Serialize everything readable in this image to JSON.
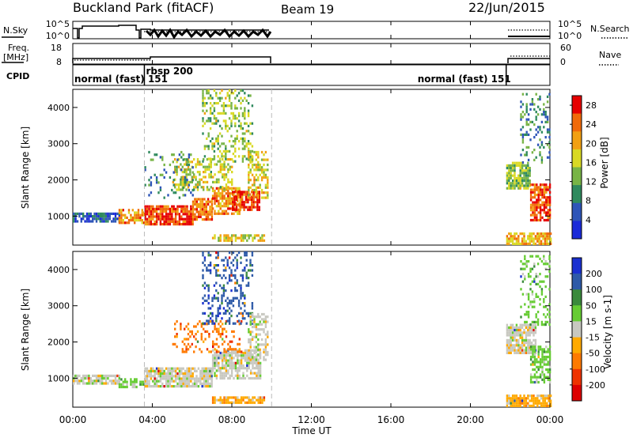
{
  "header": {
    "title": "Buckland Park (fitACF)",
    "beam": "Beam 19",
    "date": "22/Jun/2015"
  },
  "status_panels": {
    "nsky_label": "N.Sky",
    "nsearch_label": "N.Search",
    "noise_ticks": [
      "10^5",
      "10^0"
    ],
    "freq_label": "Freq.",
    "freq_unit": "[MHz]",
    "freq_ticks": [
      "18",
      "8"
    ],
    "nave_label": "Nave",
    "nave_ticks": [
      "60",
      "0"
    ],
    "cpid_label": "CPID",
    "modes": [
      {
        "name": "normal (fast) 151",
        "start_hour": 0.0,
        "end_hour": 3.6
      },
      {
        "name": "rbsp 200",
        "start_hour": 3.6,
        "end_hour": 10.0
      },
      {
        "name": "normal (fast) 151",
        "start_hour": 21.8,
        "end_hour": 24.0
      }
    ]
  },
  "time_axis": {
    "label": "Time UT",
    "ticks": [
      "00:00",
      "04:00",
      "08:00",
      "12:00",
      "16:00",
      "20:00",
      "00:00"
    ]
  },
  "chart_data": [
    {
      "type": "heatmap",
      "quantity": "power",
      "xlabel": "Time UT",
      "ylabel": "Slant Range [km]",
      "xlim_hours": [
        0,
        24
      ],
      "ylim_km": [
        200,
        4500
      ],
      "yticks": [
        1000,
        2000,
        3000,
        4000
      ],
      "colorbar": {
        "label": "Power [dB]",
        "ticks": [
          4,
          8,
          12,
          16,
          20,
          24,
          28
        ],
        "range": [
          0,
          30
        ],
        "colors": [
          "#1a2ad8",
          "#2e55b8",
          "#2f8a5e",
          "#78b446",
          "#d9d924",
          "#f2a012",
          "#f06a0a",
          "#e60000"
        ]
      },
      "echo_regions": [
        {
          "t0": 0.0,
          "t1": 2.3,
          "r0": 850,
          "r1": 1100,
          "level": 6,
          "density": 0.8
        },
        {
          "t0": 2.3,
          "t1": 3.6,
          "r0": 800,
          "r1": 1200,
          "level": 22,
          "density": 0.7
        },
        {
          "t0": 3.6,
          "t1": 6.0,
          "r0": 800,
          "r1": 1300,
          "level": 26,
          "density": 0.85
        },
        {
          "t0": 6.0,
          "t1": 7.0,
          "r0": 900,
          "r1": 1500,
          "level": 24,
          "density": 0.8
        },
        {
          "t0": 7.0,
          "t1": 8.4,
          "r0": 1100,
          "r1": 1800,
          "level": 22,
          "density": 0.7
        },
        {
          "t0": 8.0,
          "t1": 9.4,
          "r0": 1200,
          "r1": 1700,
          "level": 27,
          "density": 0.8
        },
        {
          "t0": 5.0,
          "t1": 8.0,
          "r0": 1700,
          "r1": 2600,
          "level": 16,
          "density": 0.45
        },
        {
          "t0": 6.5,
          "t1": 9.0,
          "r0": 2500,
          "r1": 4500,
          "level": 14,
          "density": 0.35
        },
        {
          "t0": 8.8,
          "t1": 9.8,
          "r0": 1500,
          "r1": 2800,
          "level": 18,
          "density": 0.5
        },
        {
          "t0": 3.6,
          "t1": 6.0,
          "r0": 1500,
          "r1": 2800,
          "level": 9,
          "density": 0.15
        },
        {
          "t0": 7.0,
          "t1": 9.6,
          "r0": 300,
          "r1": 500,
          "level": 18,
          "density": 0.7
        },
        {
          "t0": 21.8,
          "t1": 23.0,
          "r0": 1800,
          "r1": 2500,
          "level": 14,
          "density": 0.75
        },
        {
          "t0": 23.0,
          "t1": 24.0,
          "r0": 900,
          "r1": 1900,
          "level": 26,
          "density": 0.75
        },
        {
          "t0": 22.5,
          "t1": 24.0,
          "r0": 2500,
          "r1": 4400,
          "level": 9,
          "density": 0.25
        },
        {
          "t0": 21.8,
          "t1": 24.0,
          "r0": 250,
          "r1": 550,
          "level": 20,
          "density": 0.8
        }
      ]
    },
    {
      "type": "heatmap",
      "quantity": "velocity",
      "xlabel": "Time UT",
      "ylabel": "Slant Range [km]",
      "xlim_hours": [
        0,
        24
      ],
      "ylim_km": [
        200,
        4500
      ],
      "yticks": [
        1000,
        2000,
        3000,
        4000
      ],
      "colorbar": {
        "label": "Velocity [m s-1]",
        "ticks": [
          200,
          100,
          50,
          15,
          -15,
          -50,
          -100,
          -200
        ],
        "colors": [
          "#1a30d0",
          "#2e5aa8",
          "#3a8a3c",
          "#66cc33",
          "#c8c8c0",
          "#ffaa00",
          "#ff7a00",
          "#ee3300",
          "#dd0000"
        ]
      },
      "echo_regions": [
        {
          "t0": 0.0,
          "t1": 2.3,
          "r0": 850,
          "r1": 1100,
          "band": 4,
          "density": 0.8
        },
        {
          "t0": 2.3,
          "t1": 3.6,
          "r0": 750,
          "r1": 1000,
          "band": 3,
          "density": 0.6
        },
        {
          "t0": 3.6,
          "t1": 7.0,
          "r0": 800,
          "r1": 1300,
          "band": 4,
          "density": 0.85
        },
        {
          "t0": 7.0,
          "t1": 9.4,
          "r0": 1000,
          "r1": 1800,
          "band": 4,
          "density": 0.75
        },
        {
          "t0": 5.0,
          "t1": 8.5,
          "r0": 1700,
          "r1": 2600,
          "band": 6,
          "density": 0.3
        },
        {
          "t0": 6.5,
          "t1": 9.0,
          "r0": 2500,
          "r1": 4500,
          "band": 1,
          "density": 0.3
        },
        {
          "t0": 8.8,
          "t1": 9.8,
          "r0": 1500,
          "r1": 2800,
          "band": 4,
          "density": 0.5
        },
        {
          "t0": 7.0,
          "t1": 9.6,
          "r0": 300,
          "r1": 500,
          "band": 5,
          "density": 0.7
        },
        {
          "t0": 21.8,
          "t1": 23.3,
          "r0": 1700,
          "r1": 2500,
          "band": 4,
          "density": 0.8
        },
        {
          "t0": 23.0,
          "t1": 24.0,
          "r0": 900,
          "r1": 1900,
          "band": 3,
          "density": 0.55
        },
        {
          "t0": 22.5,
          "t1": 24.0,
          "r0": 2500,
          "r1": 4400,
          "band": 3,
          "density": 0.25
        },
        {
          "t0": 21.8,
          "t1": 24.0,
          "r0": 250,
          "r1": 550,
          "band": 5,
          "density": 0.85
        }
      ]
    }
  ]
}
